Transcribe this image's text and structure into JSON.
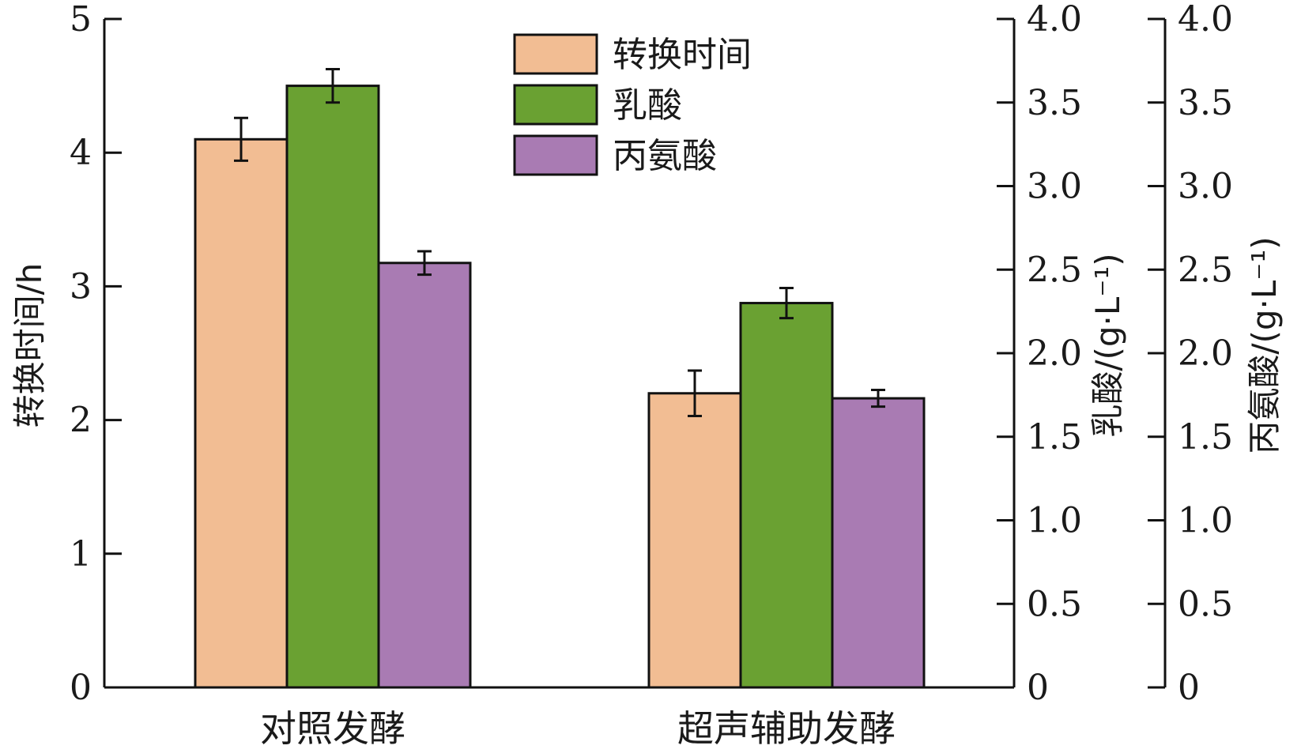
{
  "chart_data": {
    "type": "bar",
    "categories": [
      "对照发酵",
      "超声辅助发酵"
    ],
    "series": [
      {
        "name": "转换时间",
        "axis": "left",
        "color": "#f2bd93",
        "values": [
          4.1,
          2.2
        ],
        "errors": [
          0.16,
          0.17
        ]
      },
      {
        "name": "乳酸",
        "axis": "right1",
        "color": "#6aa132",
        "values": [
          3.6,
          2.3
        ],
        "errors": [
          0.1,
          0.09
        ]
      },
      {
        "name": "丙氨酸",
        "axis": "right2",
        "color": "#a97bb3",
        "values": [
          2.54,
          1.73
        ],
        "errors": [
          0.07,
          0.05
        ]
      }
    ],
    "axes": {
      "left": {
        "label": "转换时间/h",
        "ylim": [
          0,
          5
        ],
        "ticks": [
          "0",
          "1",
          "2",
          "3",
          "4",
          "5"
        ],
        "tick_values": [
          0,
          1,
          2,
          3,
          4,
          5
        ]
      },
      "right1": {
        "label": "乳酸/(g·L⁻¹)",
        "ylim": [
          0,
          4
        ],
        "ticks": [
          "0",
          "0.5",
          "1.0",
          "1.5",
          "2.0",
          "2.5",
          "3.0",
          "3.5",
          "4.0"
        ],
        "tick_values": [
          0,
          0.5,
          1,
          1.5,
          2,
          2.5,
          3,
          3.5,
          4
        ]
      },
      "right2": {
        "label": "丙氨酸/(g·L⁻¹)",
        "ylim": [
          0,
          4
        ],
        "ticks": [
          "0",
          "0.5",
          "1.0",
          "1.5",
          "2.0",
          "2.5",
          "3.0",
          "3.5",
          "4.0"
        ],
        "tick_values": [
          0,
          0.5,
          1,
          1.5,
          2,
          2.5,
          3,
          3.5,
          4
        ]
      }
    },
    "legend": {
      "position": "top-center",
      "entries": [
        "转换时间",
        "乳酸",
        "丙氨酸"
      ]
    },
    "grid": false
  }
}
